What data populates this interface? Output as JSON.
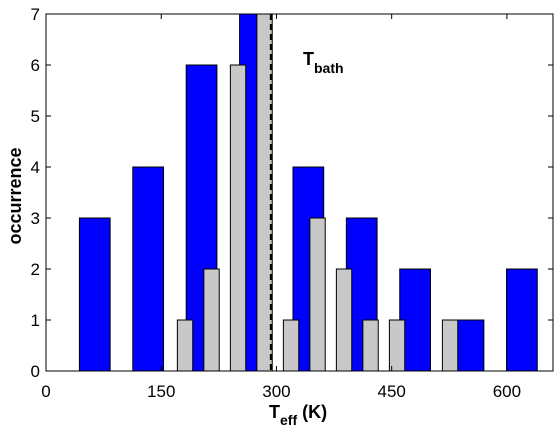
{
  "chart_data": {
    "type": "bar",
    "xlabel": "T",
    "xlabel_sub": "eff",
    "xlabel_unit": " (K)",
    "ylabel": "occurrence",
    "xlim": [
      0,
      660
    ],
    "ylim": [
      0,
      7
    ],
    "xticks": [
      0,
      150,
      300,
      450,
      600
    ],
    "yticks": [
      0,
      1,
      2,
      3,
      4,
      5,
      6,
      7
    ],
    "grid": false,
    "series": [
      {
        "color": "#0000ff",
        "bar_width": 40,
        "x": [
          63.5,
          133,
          202.5,
          272,
          341.5,
          411,
          480.5,
          550,
          619.5
        ],
        "values": [
          3,
          4,
          6,
          7,
          4,
          3,
          2,
          1,
          2
        ]
      },
      {
        "color": "#c8c8c8",
        "bar_width": 20,
        "x": [
          146.5,
          181,
          215.5,
          250,
          284.5,
          319,
          353.5,
          388,
          422.5,
          457,
          491.5,
          526,
          560.5
        ],
        "values": [
          0,
          1,
          2,
          6,
          7,
          1,
          3,
          2,
          1,
          1,
          0,
          1,
          0
        ]
      }
    ],
    "reference_line": {
      "x": 293,
      "style": "dashed",
      "label_main": "T",
      "label_sub": "bath"
    }
  }
}
